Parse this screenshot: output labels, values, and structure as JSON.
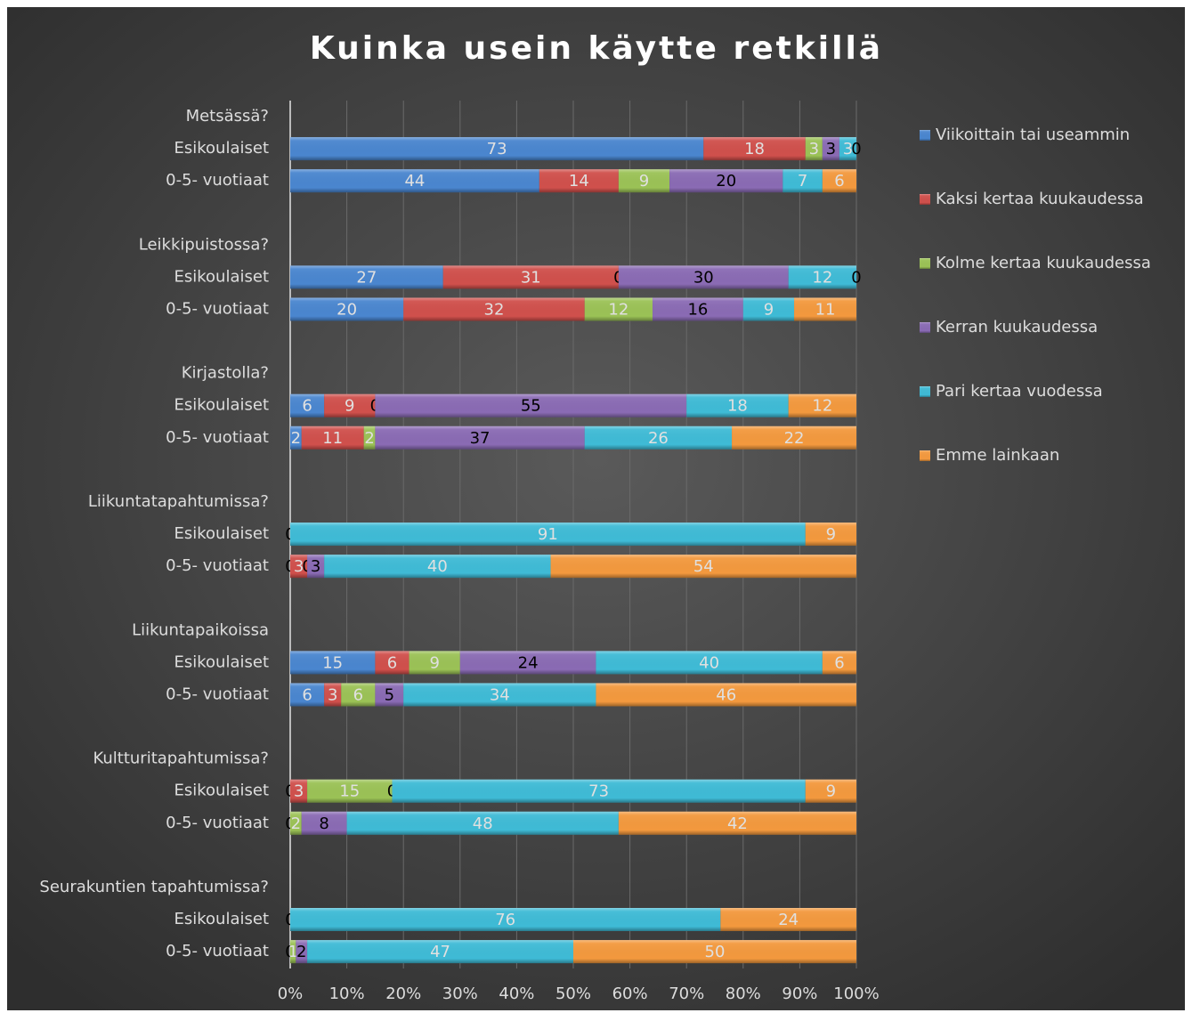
{
  "chart_data": {
    "type": "stacked-bar-horizontal",
    "title": "Kuinka usein käytte retkillä",
    "categories": [
      "Metsässä?",
      "Esikoulaiset",
      "0-5- vuotiaat",
      null,
      "Leikkipuistossa?",
      "Esikoulaiset",
      "0-5- vuotiaat",
      null,
      "Kirjastolla?",
      "Esikoulaiset",
      "0-5- vuotiaat",
      null,
      "Liikuntatapahtumissa?",
      "Esikoulaiset",
      "0-5- vuotiaat",
      null,
      "Liikuntapaikoissa",
      "Esikoulaiset",
      "0-5- vuotiaat",
      null,
      "Kultturitapahtumissa?",
      "Esikoulaiset",
      "0-5- vuotiaat",
      null,
      "Seurakuntien tapahtumissa?",
      "Esikoulaiset",
      "0-5- vuotiaat"
    ],
    "series": [
      {
        "name": "Viikoittain tai useammin",
        "color": "#4a86cf",
        "label_color": "#e0e0e0",
        "values": [
          null,
          73,
          44,
          null,
          null,
          27,
          20,
          null,
          null,
          6,
          2,
          null,
          null,
          0,
          0,
          null,
          null,
          15,
          6,
          null,
          null,
          0,
          0,
          null,
          null,
          0,
          0
        ]
      },
      {
        "name": "Kaksi kertaa kuukaudessa",
        "color": "#d0504c",
        "label_color": "#e0e0e0",
        "values": [
          null,
          18,
          14,
          null,
          null,
          31,
          32,
          null,
          null,
          9,
          11,
          null,
          null,
          null,
          3,
          null,
          null,
          6,
          3,
          null,
          null,
          3,
          null,
          null,
          null,
          null,
          null
        ]
      },
      {
        "name": "Kolme kertaa kuukaudessa",
        "color": "#9bc256",
        "label_color": "#e0e0e0",
        "values": [
          null,
          3,
          9,
          null,
          null,
          0,
          12,
          null,
          null,
          0,
          2,
          null,
          null,
          null,
          0,
          null,
          null,
          9,
          6,
          null,
          null,
          15,
          2,
          null,
          null,
          null,
          1
        ]
      },
      {
        "name": "Kerran kuukaudessa",
        "color": "#8a6bb4",
        "label_color": "#000000",
        "values": [
          null,
          3,
          20,
          null,
          null,
          30,
          16,
          null,
          null,
          55,
          37,
          null,
          null,
          null,
          3,
          null,
          null,
          24,
          5,
          null,
          null,
          0,
          8,
          null,
          null,
          null,
          2
        ]
      },
      {
        "name": "Pari kertaa vuodessa",
        "color": "#3fbbd6",
        "label_color": "#e0e0e0",
        "values": [
          null,
          3,
          7,
          null,
          null,
          12,
          9,
          null,
          null,
          18,
          26,
          null,
          null,
          91,
          40,
          null,
          null,
          40,
          34,
          null,
          null,
          73,
          48,
          null,
          null,
          76,
          47
        ]
      },
      {
        "name": "Emme lainkaan",
        "color": "#f3993e",
        "label_color": "#e0e0e0",
        "values": [
          null,
          0,
          6,
          null,
          null,
          0,
          11,
          null,
          null,
          12,
          22,
          null,
          null,
          9,
          54,
          null,
          null,
          6,
          46,
          null,
          null,
          9,
          42,
          null,
          null,
          24,
          50
        ]
      }
    ],
    "xlim": [
      0,
      100
    ],
    "xticks": [
      {
        "value": 0,
        "label": "0%"
      },
      {
        "value": 10,
        "label": "10%"
      },
      {
        "value": 20,
        "label": "20%"
      },
      {
        "value": 30,
        "label": "30%"
      },
      {
        "value": 40,
        "label": "40%"
      },
      {
        "value": 50,
        "label": "50%"
      },
      {
        "value": 60,
        "label": "60%"
      },
      {
        "value": 70,
        "label": "70%"
      },
      {
        "value": 80,
        "label": "80%"
      },
      {
        "value": 90,
        "label": "90%"
      },
      {
        "value": 100,
        "label": "100%"
      }
    ],
    "grid": true,
    "legend": "right"
  }
}
